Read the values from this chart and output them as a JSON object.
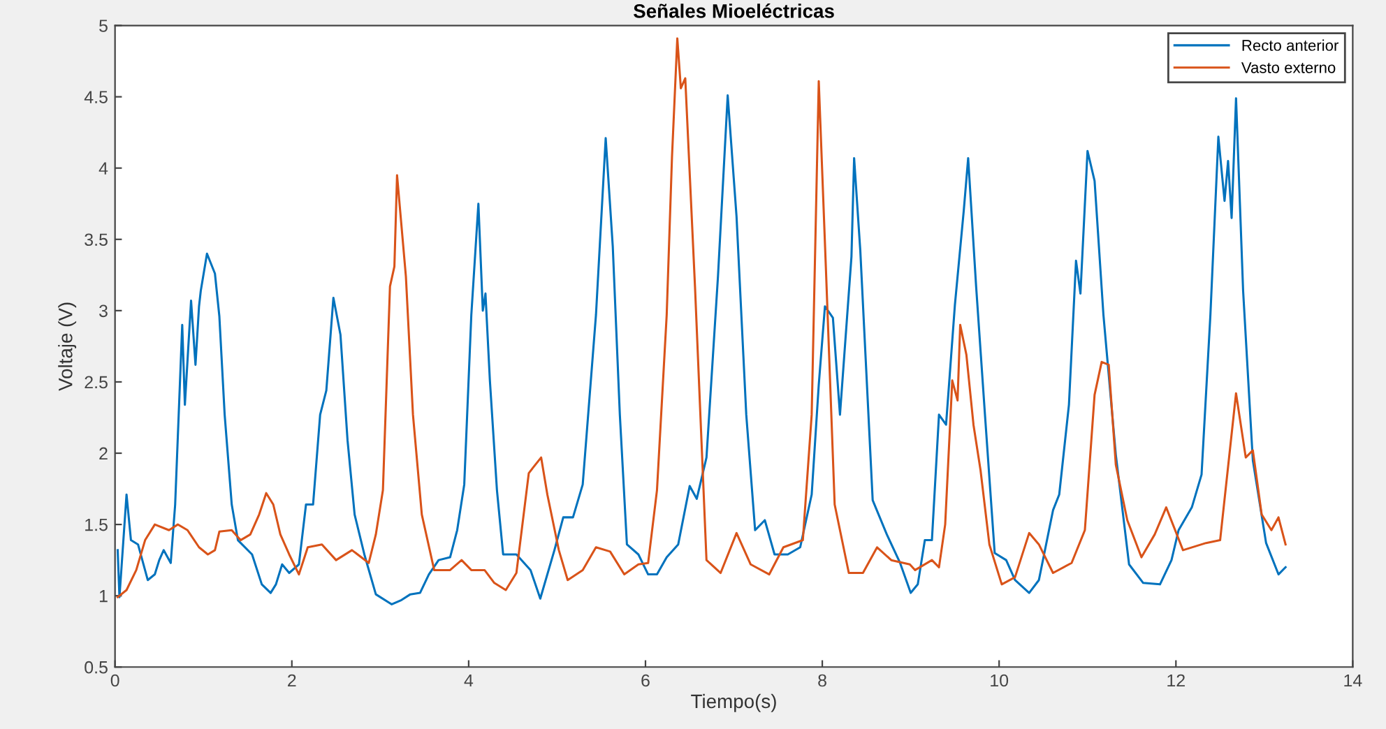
{
  "chart_data": {
    "type": "line",
    "title": "Señales Mioeléctricas",
    "xlabel": "Tiempo(s)",
    "ylabel": "Voltaje (V)",
    "xlim": [
      0,
      14
    ],
    "ylim": [
      0.5,
      5
    ],
    "xticks": [
      0,
      2,
      4,
      6,
      8,
      10,
      12,
      14
    ],
    "yticks": [
      0.5,
      1,
      1.5,
      2,
      2.5,
      3,
      3.5,
      4,
      4.5,
      5
    ],
    "grid": false,
    "legend": "top right",
    "line_style": "solid",
    "series": [
      {
        "name": "Recto anterior",
        "color": "#0072bd",
        "x": [
          0.03,
          0.05,
          0.13,
          0.18,
          0.26,
          0.37,
          0.45,
          0.5,
          0.55,
          0.63,
          0.68,
          0.76,
          0.79,
          0.86,
          0.91,
          0.95,
          0.97,
          1.04,
          1.13,
          1.18,
          1.24,
          1.32,
          1.39,
          1.55,
          1.66,
          1.76,
          1.82,
          1.89,
          1.97,
          2.08,
          2.16,
          2.24,
          2.32,
          2.39,
          2.47,
          2.55,
          2.63,
          2.71,
          2.82,
          2.95,
          3.13,
          3.24,
          3.34,
          3.45,
          3.55,
          3.66,
          3.79,
          3.87,
          3.95,
          4.03,
          4.11,
          4.16,
          4.19,
          4.24,
          4.32,
          4.39,
          4.54,
          4.7,
          4.81,
          4.97,
          5.07,
          5.18,
          5.29,
          5.44,
          5.55,
          5.63,
          5.71,
          5.79,
          5.92,
          6.03,
          6.13,
          6.24,
          6.37,
          6.5,
          6.58,
          6.69,
          6.82,
          6.93,
          7.03,
          7.14,
          7.24,
          7.35,
          7.46,
          7.61,
          7.75,
          7.88,
          7.96,
          8.03,
          8.12,
          8.2,
          8.33,
          8.36,
          8.43,
          8.57,
          8.73,
          8.88,
          9.0,
          9.08,
          9.16,
          9.24,
          9.32,
          9.4,
          9.5,
          9.6,
          9.65,
          9.74,
          9.84,
          9.95,
          10.08,
          10.18,
          10.34,
          10.45,
          10.61,
          10.68,
          10.79,
          10.87,
          10.92,
          11.0,
          11.08,
          11.18,
          11.32,
          11.47,
          11.63,
          11.82,
          11.95,
          12.03,
          12.18,
          12.29,
          12.39,
          12.48,
          12.55,
          12.59,
          12.63,
          12.68,
          12.76,
          12.87,
          13.02,
          13.16,
          13.24
        ],
        "values": [
          1.32,
          0.99,
          1.71,
          1.39,
          1.36,
          1.11,
          1.15,
          1.25,
          1.32,
          1.23,
          1.64,
          2.9,
          2.34,
          3.07,
          2.62,
          3.03,
          3.14,
          3.4,
          3.26,
          2.96,
          2.27,
          1.64,
          1.39,
          1.29,
          1.08,
          1.02,
          1.08,
          1.22,
          1.16,
          1.22,
          1.64,
          1.64,
          2.27,
          2.44,
          3.09,
          2.83,
          2.09,
          1.57,
          1.29,
          1.01,
          0.94,
          0.97,
          1.01,
          1.02,
          1.15,
          1.25,
          1.27,
          1.46,
          1.78,
          2.97,
          3.75,
          3.0,
          3.12,
          2.51,
          1.74,
          1.29,
          1.29,
          1.18,
          0.98,
          1.32,
          1.55,
          1.55,
          1.78,
          2.97,
          4.21,
          3.45,
          2.27,
          1.36,
          1.29,
          1.15,
          1.15,
          1.27,
          1.36,
          1.77,
          1.68,
          1.97,
          3.24,
          4.51,
          3.66,
          2.27,
          1.46,
          1.53,
          1.29,
          1.29,
          1.34,
          1.71,
          2.48,
          3.03,
          2.95,
          2.27,
          3.38,
          4.07,
          3.42,
          1.67,
          1.43,
          1.23,
          1.02,
          1.08,
          1.39,
          1.39,
          2.27,
          2.2,
          3.04,
          3.7,
          4.07,
          3.17,
          2.27,
          1.3,
          1.25,
          1.11,
          1.02,
          1.11,
          1.6,
          1.71,
          2.34,
          3.35,
          3.12,
          4.12,
          3.91,
          2.97,
          1.99,
          1.22,
          1.09,
          1.08,
          1.25,
          1.46,
          1.62,
          1.85,
          2.97,
          4.22,
          3.77,
          4.05,
          3.65,
          4.49,
          3.14,
          1.95,
          1.37,
          1.15,
          1.2
        ]
      },
      {
        "name": "Vasto externo",
        "color": "#d95319",
        "x": [
          0.03,
          0.13,
          0.24,
          0.34,
          0.45,
          0.61,
          0.71,
          0.82,
          0.95,
          1.05,
          1.13,
          1.18,
          1.32,
          1.42,
          1.53,
          1.63,
          1.71,
          1.79,
          1.87,
          1.97,
          2.08,
          2.18,
          2.34,
          2.5,
          2.68,
          2.87,
          2.95,
          3.03,
          3.11,
          3.16,
          3.19,
          3.29,
          3.37,
          3.47,
          3.61,
          3.79,
          3.92,
          4.03,
          4.18,
          4.29,
          4.42,
          4.54,
          4.68,
          4.73,
          4.82,
          4.89,
          5.02,
          5.12,
          5.29,
          5.44,
          5.6,
          5.76,
          5.92,
          6.03,
          6.13,
          6.24,
          6.3,
          6.36,
          6.4,
          6.45,
          6.56,
          6.69,
          6.85,
          7.03,
          7.19,
          7.4,
          7.56,
          7.78,
          7.88,
          7.96,
          8.04,
          8.14,
          8.3,
          8.46,
          8.62,
          8.78,
          8.99,
          9.05,
          9.24,
          9.32,
          9.39,
          9.47,
          9.53,
          9.56,
          9.63,
          9.71,
          9.79,
          9.89,
          10.03,
          10.18,
          10.34,
          10.45,
          10.61,
          10.82,
          10.97,
          11.08,
          11.16,
          11.24,
          11.32,
          11.45,
          11.61,
          11.76,
          11.89,
          12.08,
          12.34,
          12.5,
          12.68,
          12.79,
          12.87,
          12.97,
          13.08,
          13.16,
          13.24
        ],
        "values": [
          0.99,
          1.04,
          1.18,
          1.39,
          1.5,
          1.46,
          1.5,
          1.46,
          1.34,
          1.29,
          1.32,
          1.45,
          1.46,
          1.39,
          1.43,
          1.57,
          1.72,
          1.64,
          1.43,
          1.29,
          1.15,
          1.34,
          1.36,
          1.25,
          1.32,
          1.23,
          1.43,
          1.74,
          3.17,
          3.31,
          3.95,
          3.24,
          2.27,
          1.57,
          1.18,
          1.18,
          1.25,
          1.18,
          1.18,
          1.09,
          1.04,
          1.16,
          1.86,
          1.9,
          1.97,
          1.71,
          1.32,
          1.11,
          1.18,
          1.34,
          1.31,
          1.15,
          1.22,
          1.23,
          1.74,
          2.97,
          4.08,
          4.91,
          4.56,
          4.63,
          3.17,
          1.25,
          1.16,
          1.44,
          1.22,
          1.15,
          1.34,
          1.39,
          2.27,
          4.61,
          3.31,
          1.64,
          1.16,
          1.16,
          1.34,
          1.25,
          1.22,
          1.18,
          1.25,
          1.2,
          1.5,
          2.51,
          2.37,
          2.9,
          2.69,
          2.2,
          1.88,
          1.36,
          1.08,
          1.13,
          1.44,
          1.36,
          1.16,
          1.23,
          1.46,
          2.41,
          2.64,
          2.62,
          1.92,
          1.53,
          1.27,
          1.43,
          1.62,
          1.32,
          1.37,
          1.39,
          2.42,
          1.97,
          2.02,
          1.57,
          1.46,
          1.55,
          1.36
        ]
      }
    ]
  }
}
